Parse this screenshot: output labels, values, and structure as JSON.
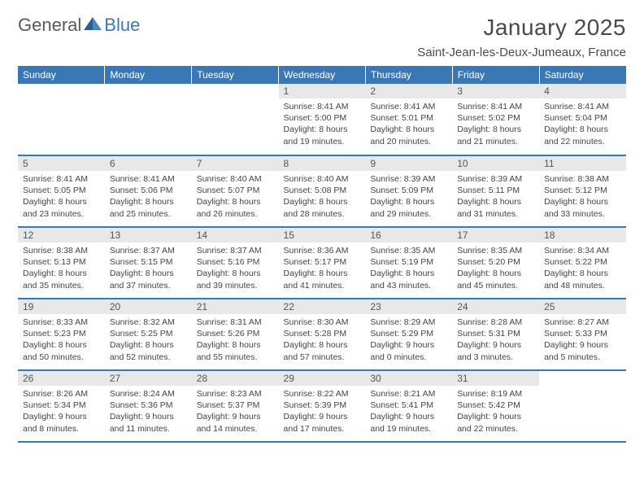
{
  "logo": {
    "text1": "General",
    "text2": "Blue"
  },
  "title": "January 2025",
  "location": "Saint-Jean-les-Deux-Jumeaux, France",
  "colors": {
    "header_bg": "#3a78b5",
    "header_text": "#ffffff",
    "daynum_bg": "#e8e8e8",
    "daynum_text": "#555555",
    "body_text": "#444444",
    "border": "#3a78b5",
    "logo_gray": "#5a5a5a",
    "logo_blue": "#3a78b5"
  },
  "day_headers": [
    "Sunday",
    "Monday",
    "Tuesday",
    "Wednesday",
    "Thursday",
    "Friday",
    "Saturday"
  ],
  "weeks": [
    [
      null,
      null,
      null,
      {
        "n": "1",
        "sunrise": "8:41 AM",
        "sunset": "5:00 PM",
        "dh": "8",
        "dm": "19"
      },
      {
        "n": "2",
        "sunrise": "8:41 AM",
        "sunset": "5:01 PM",
        "dh": "8",
        "dm": "20"
      },
      {
        "n": "3",
        "sunrise": "8:41 AM",
        "sunset": "5:02 PM",
        "dh": "8",
        "dm": "21"
      },
      {
        "n": "4",
        "sunrise": "8:41 AM",
        "sunset": "5:04 PM",
        "dh": "8",
        "dm": "22"
      }
    ],
    [
      {
        "n": "5",
        "sunrise": "8:41 AM",
        "sunset": "5:05 PM",
        "dh": "8",
        "dm": "23"
      },
      {
        "n": "6",
        "sunrise": "8:41 AM",
        "sunset": "5:06 PM",
        "dh": "8",
        "dm": "25"
      },
      {
        "n": "7",
        "sunrise": "8:40 AM",
        "sunset": "5:07 PM",
        "dh": "8",
        "dm": "26"
      },
      {
        "n": "8",
        "sunrise": "8:40 AM",
        "sunset": "5:08 PM",
        "dh": "8",
        "dm": "28"
      },
      {
        "n": "9",
        "sunrise": "8:39 AM",
        "sunset": "5:09 PM",
        "dh": "8",
        "dm": "29"
      },
      {
        "n": "10",
        "sunrise": "8:39 AM",
        "sunset": "5:11 PM",
        "dh": "8",
        "dm": "31"
      },
      {
        "n": "11",
        "sunrise": "8:38 AM",
        "sunset": "5:12 PM",
        "dh": "8",
        "dm": "33"
      }
    ],
    [
      {
        "n": "12",
        "sunrise": "8:38 AM",
        "sunset": "5:13 PM",
        "dh": "8",
        "dm": "35"
      },
      {
        "n": "13",
        "sunrise": "8:37 AM",
        "sunset": "5:15 PM",
        "dh": "8",
        "dm": "37"
      },
      {
        "n": "14",
        "sunrise": "8:37 AM",
        "sunset": "5:16 PM",
        "dh": "8",
        "dm": "39"
      },
      {
        "n": "15",
        "sunrise": "8:36 AM",
        "sunset": "5:17 PM",
        "dh": "8",
        "dm": "41"
      },
      {
        "n": "16",
        "sunrise": "8:35 AM",
        "sunset": "5:19 PM",
        "dh": "8",
        "dm": "43"
      },
      {
        "n": "17",
        "sunrise": "8:35 AM",
        "sunset": "5:20 PM",
        "dh": "8",
        "dm": "45"
      },
      {
        "n": "18",
        "sunrise": "8:34 AM",
        "sunset": "5:22 PM",
        "dh": "8",
        "dm": "48"
      }
    ],
    [
      {
        "n": "19",
        "sunrise": "8:33 AM",
        "sunset": "5:23 PM",
        "dh": "8",
        "dm": "50"
      },
      {
        "n": "20",
        "sunrise": "8:32 AM",
        "sunset": "5:25 PM",
        "dh": "8",
        "dm": "52"
      },
      {
        "n": "21",
        "sunrise": "8:31 AM",
        "sunset": "5:26 PM",
        "dh": "8",
        "dm": "55"
      },
      {
        "n": "22",
        "sunrise": "8:30 AM",
        "sunset": "5:28 PM",
        "dh": "8",
        "dm": "57"
      },
      {
        "n": "23",
        "sunrise": "8:29 AM",
        "sunset": "5:29 PM",
        "dh": "9",
        "dm": "0"
      },
      {
        "n": "24",
        "sunrise": "8:28 AM",
        "sunset": "5:31 PM",
        "dh": "9",
        "dm": "3"
      },
      {
        "n": "25",
        "sunrise": "8:27 AM",
        "sunset": "5:33 PM",
        "dh": "9",
        "dm": "5"
      }
    ],
    [
      {
        "n": "26",
        "sunrise": "8:26 AM",
        "sunset": "5:34 PM",
        "dh": "9",
        "dm": "8"
      },
      {
        "n": "27",
        "sunrise": "8:24 AM",
        "sunset": "5:36 PM",
        "dh": "9",
        "dm": "11"
      },
      {
        "n": "28",
        "sunrise": "8:23 AM",
        "sunset": "5:37 PM",
        "dh": "9",
        "dm": "14"
      },
      {
        "n": "29",
        "sunrise": "8:22 AM",
        "sunset": "5:39 PM",
        "dh": "9",
        "dm": "17"
      },
      {
        "n": "30",
        "sunrise": "8:21 AM",
        "sunset": "5:41 PM",
        "dh": "9",
        "dm": "19"
      },
      {
        "n": "31",
        "sunrise": "8:19 AM",
        "sunset": "5:42 PM",
        "dh": "9",
        "dm": "22"
      },
      null
    ]
  ]
}
